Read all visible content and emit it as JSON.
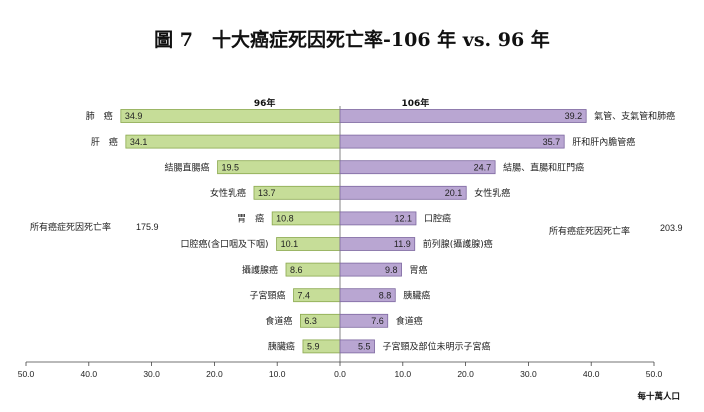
{
  "title": "圖 7　十大癌症死因死亡率-106 年 vs. 96 年",
  "unit_label": "每十萬人口",
  "colors": {
    "left_bar": "#c6dd98",
    "left_edge": "#8aa84e",
    "right_bar": "#b9a6d2",
    "right_edge": "#7d68a0"
  },
  "chart_data": {
    "type": "bar",
    "orientation": "horizontal-butterfly",
    "title": "圖 7　十大癌症死因死亡率-106 年 vs. 96 年",
    "xlim": [
      -50,
      50
    ],
    "xticks": [
      "50.0",
      "40.0",
      "30.0",
      "20.0",
      "10.0",
      "0.0",
      "10.0",
      "20.0",
      "30.0",
      "40.0",
      "50.0"
    ],
    "unit": "每十萬人口",
    "left": {
      "name": "96年",
      "total_label": "所有癌症死因死亡率",
      "total_value": "175.9",
      "categories": [
        "肺　癌",
        "肝　癌",
        "結腸直腸癌",
        "女性乳癌",
        "胃　癌",
        "口腔癌(含口咽及下咽)",
        "攝護腺癌",
        "子宮頸癌",
        "食道癌",
        "胰臟癌"
      ],
      "values": [
        34.9,
        34.1,
        19.5,
        13.7,
        10.8,
        10.1,
        8.6,
        7.4,
        6.3,
        5.9
      ],
      "labels": [
        "34.9",
        "34.1",
        "19.5",
        "13.7",
        "10.8",
        "10.1",
        "8.6",
        "7.4",
        "6.3",
        "5.9"
      ]
    },
    "right": {
      "name": "106年",
      "total_label": "所有癌症死因死亡率",
      "total_value": "203.9",
      "categories": [
        "氣管、支氣管和肺癌",
        "肝和肝內膽管癌",
        "結腸、直腸和肛門癌",
        "女性乳癌",
        "口腔癌",
        "前列腺(攝護腺)癌",
        "胃癌",
        "胰臟癌",
        "食道癌",
        "子宮頸及部位未明示子宮癌"
      ],
      "values": [
        39.2,
        35.7,
        24.7,
        20.1,
        12.1,
        11.9,
        9.8,
        8.8,
        7.6,
        5.5
      ],
      "labels": [
        "39.2",
        "35.7",
        "24.7",
        "20.1",
        "12.1",
        "11.9",
        "9.8",
        "8.8",
        "7.6",
        "5.5"
      ]
    }
  }
}
